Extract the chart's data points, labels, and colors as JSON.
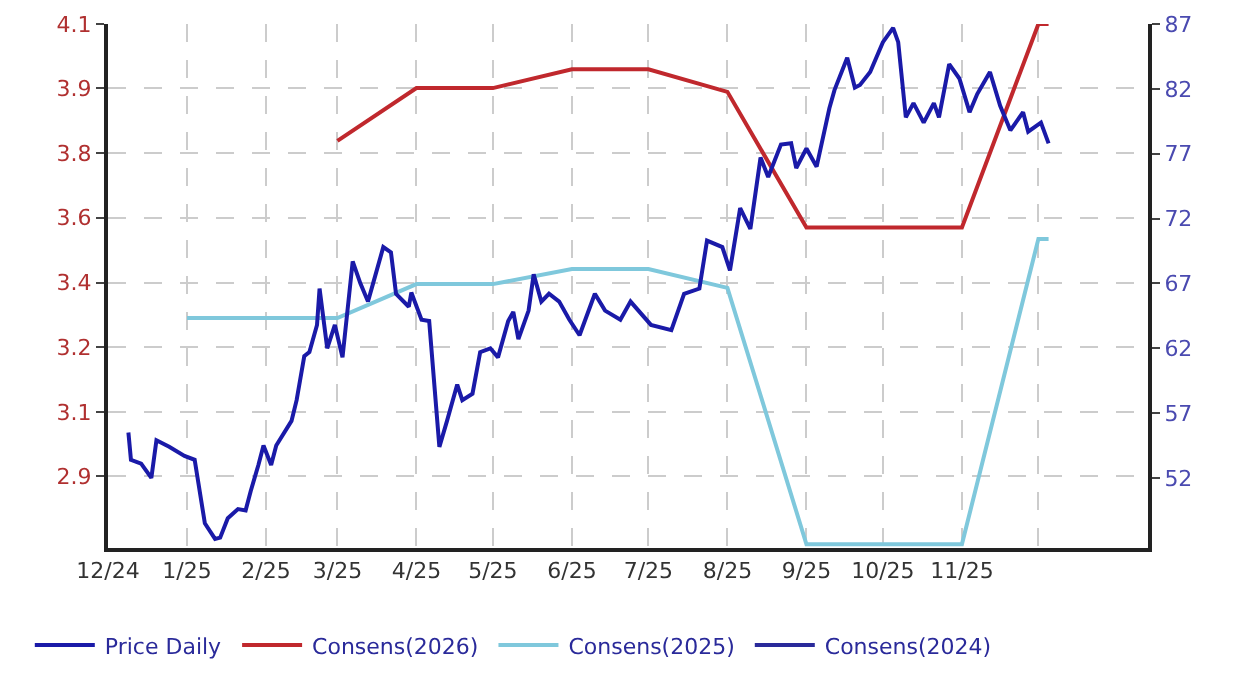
{
  "chart_data": {
    "type": "line",
    "xlim": [
      "2024-12-01",
      "2026-01-13"
    ],
    "xticks": [
      {
        "value": "2024-12-01",
        "label": "12/24"
      },
      {
        "value": "2025-01-01",
        "label": "1/25"
      },
      {
        "value": "2025-02-01",
        "label": "2/25"
      },
      {
        "value": "2025-03-01",
        "label": "3/25"
      },
      {
        "value": "2025-04-01",
        "label": "4/25"
      },
      {
        "value": "2025-05-01",
        "label": "5/25"
      },
      {
        "value": "2025-06-01",
        "label": "6/25"
      },
      {
        "value": "2025-07-01",
        "label": "7/25"
      },
      {
        "value": "2025-08-01",
        "label": "8/25"
      },
      {
        "value": "2025-09-01",
        "label": "9/25"
      },
      {
        "value": "2025-10-01",
        "label": "10/25"
      },
      {
        "value": "2025-11-01",
        "label": "11/25"
      },
      {
        "value": "2025-12-01",
        "label": null
      }
    ],
    "ylim": [
      2.71,
      4.1
    ],
    "yticks": [
      {
        "value": 2.9,
        "label": "2.9"
      },
      {
        "value": 3.071,
        "label": "3.1"
      },
      {
        "value": 3.243,
        "label": "3.2"
      },
      {
        "value": 3.414,
        "label": "3.4"
      },
      {
        "value": 3.586,
        "label": "3.6"
      },
      {
        "value": 3.757,
        "label": "3.8"
      },
      {
        "value": 3.929,
        "label": "3.9"
      },
      {
        "value": 4.1,
        "label": "4.1"
      }
    ],
    "y2lim": [
      46.6,
      87
    ],
    "y2ticks": [
      52,
      57,
      62,
      67,
      72,
      77,
      82,
      87
    ],
    "grid": true,
    "legend": "bottom left",
    "marker": "none",
    "line_style": "solid",
    "series": [
      {
        "name": "Price Daily",
        "color": "#1a1aa8",
        "axis": "y2",
        "x": [
          "2024-12-09",
          "2024-12-10",
          "2024-12-14",
          "2024-12-18",
          "2024-12-20",
          "2024-12-25",
          "2024-12-31",
          "2025-01-04",
          "2025-01-08",
          "2025-01-12",
          "2025-01-14",
          "2025-01-17",
          "2025-01-21",
          "2025-01-24",
          "2025-01-26",
          "2025-01-29",
          "2025-01-31",
          "2025-02-03",
          "2025-02-05",
          "2025-02-11",
          "2025-02-13",
          "2025-02-16",
          "2025-02-18",
          "2025-02-21",
          "2025-02-22",
          "2025-02-25",
          "2025-02-28",
          "2025-03-03",
          "2025-03-07",
          "2025-03-10",
          "2025-03-13",
          "2025-03-15",
          "2025-03-19",
          "2025-03-22",
          "2025-03-24",
          "2025-03-29",
          "2025-03-30",
          "2025-04-03",
          "2025-04-06",
          "2025-04-10",
          "2025-04-13",
          "2025-04-17",
          "2025-04-19",
          "2025-04-23",
          "2025-04-26",
          "2025-04-30",
          "2025-05-03",
          "2025-05-07",
          "2025-05-09",
          "2025-05-11",
          "2025-05-15",
          "2025-05-17",
          "2025-05-20",
          "2025-05-23",
          "2025-05-27",
          "2025-05-31",
          "2025-06-04",
          "2025-06-10",
          "2025-06-14",
          "2025-06-20",
          "2025-06-24",
          "2025-07-02",
          "2025-07-10",
          "2025-07-15",
          "2025-07-21",
          "2025-07-24",
          "2025-07-30",
          "2025-08-02",
          "2025-08-06",
          "2025-08-10",
          "2025-08-14",
          "2025-08-17",
          "2025-08-22",
          "2025-08-26",
          "2025-08-28",
          "2025-09-01",
          "2025-09-05",
          "2025-09-10",
          "2025-09-12",
          "2025-09-17",
          "2025-09-20",
          "2025-09-22",
          "2025-09-26",
          "2025-10-01",
          "2025-10-05",
          "2025-10-07",
          "2025-10-10",
          "2025-10-13",
          "2025-10-17",
          "2025-10-21",
          "2025-10-23",
          "2025-10-27",
          "2025-10-31",
          "2025-11-04",
          "2025-11-07",
          "2025-11-12",
          "2025-11-16",
          "2025-11-20",
          "2025-11-25",
          "2025-11-27",
          "2025-12-02",
          "2025-12-05"
        ],
        "values": [
          55.5,
          53.4,
          53.1,
          52.0,
          54.9,
          54.4,
          53.7,
          53.4,
          48.5,
          47.3,
          47.4,
          48.9,
          49.6,
          49.5,
          51.0,
          53.0,
          54.5,
          53.0,
          54.5,
          56.4,
          58.0,
          61.4,
          61.7,
          63.8,
          66.6,
          62.0,
          63.8,
          61.3,
          68.7,
          67.0,
          65.6,
          67.0,
          69.8,
          69.4,
          66.2,
          65.2,
          66.3,
          64.2,
          64.1,
          54.4,
          56.4,
          59.2,
          58.0,
          58.5,
          61.7,
          62.0,
          61.3,
          64.1,
          64.8,
          62.7,
          64.9,
          67.7,
          65.6,
          66.2,
          65.6,
          64.2,
          63.0,
          66.2,
          64.9,
          64.2,
          65.6,
          63.8,
          63.4,
          66.2,
          66.6,
          70.3,
          69.8,
          68.0,
          72.8,
          71.2,
          76.7,
          75.2,
          77.7,
          77.8,
          75.9,
          77.4,
          76.0,
          80.5,
          81.9,
          84.4,
          82.1,
          82.3,
          83.3,
          85.6,
          86.7,
          85.6,
          79.8,
          80.9,
          79.4,
          80.9,
          79.8,
          83.9,
          82.8,
          80.2,
          81.6,
          83.3,
          80.7,
          78.8,
          80.2,
          78.7,
          79.4,
          77.8
        ]
      },
      {
        "name": "Consens(2026)",
        "color": "#c0282d",
        "x": [
          "2025-03-01",
          "2025-04-01",
          "2025-05-01",
          "2025-06-01",
          "2025-07-01",
          "2025-08-01",
          "2025-09-01",
          "2025-11-01",
          "2025-12-01",
          "2025-12-05"
        ],
        "values": [
          3.79,
          3.93,
          3.93,
          3.98,
          3.98,
          3.92,
          3.56,
          3.56,
          4.1,
          4.1
        ]
      },
      {
        "name": "Consens(2025)",
        "color": "#7fc8dc",
        "x": [
          "2025-01-01",
          "2025-03-01",
          "2025-04-01",
          "2025-05-01",
          "2025-06-01",
          "2025-07-01",
          "2025-08-01",
          "2025-09-01",
          "2025-11-01",
          "2025-12-01",
          "2025-12-05"
        ],
        "values": [
          3.32,
          3.32,
          3.41,
          3.41,
          3.45,
          3.45,
          3.4,
          2.72,
          2.72,
          3.53,
          3.53
        ]
      },
      {
        "name": "Consens(2024)",
        "color": "#2a2a9a"
      }
    ]
  }
}
